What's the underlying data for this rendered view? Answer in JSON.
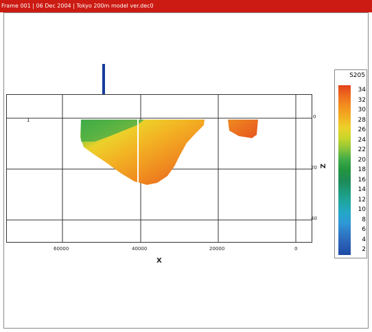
{
  "title": "Frame 001  | 06 Dec 2004 | Tokyo 200m model ver.dec0",
  "plot": {
    "x_label": "X",
    "z_label": "Z",
    "x_ticks": [
      "60000",
      "40000",
      "20000",
      "0"
    ],
    "z_ticks": [
      "0",
      "20",
      "40"
    ],
    "corner_label": "1"
  },
  "legend": {
    "title": "S205",
    "labels": [
      "34",
      "32",
      "30",
      "28",
      "26",
      "24",
      "22",
      "20",
      "18",
      "16",
      "14",
      "12",
      "10",
      "8",
      "6",
      "4",
      "2"
    ],
    "colors": [
      "#e3421b",
      "#ee6d1f",
      "#f3911f",
      "#f2b022",
      "#ecd12a",
      "#c7d62a",
      "#8ac43a",
      "#3fab48",
      "#22953f",
      "#1f8a57",
      "#1c9a7b",
      "#1fa6a0",
      "#23a7c7",
      "#2f98d5",
      "#2f79c4",
      "#2a5fb4",
      "#1d4aa6"
    ]
  },
  "colors": {
    "titlebar": "#cc1b12",
    "arrow": "#143c9a"
  },
  "icons": {
    "arrow": "down-arrow-icon"
  }
}
